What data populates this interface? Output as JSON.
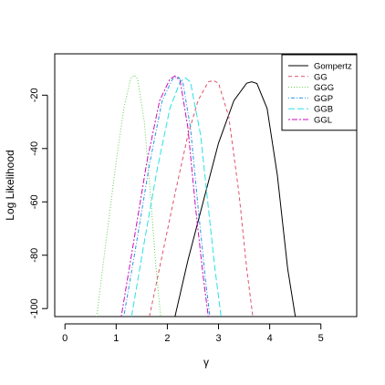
{
  "chart_data": {
    "type": "line",
    "xlabel": "γ",
    "ylabel": "Log Likelihood",
    "xlim": [
      -0.2,
      5.7
    ],
    "ylim": [
      -103,
      -4.5
    ],
    "xticks": [
      0,
      1,
      2,
      3,
      4,
      5
    ],
    "yticks": [
      -100,
      -80,
      -60,
      -40,
      -20
    ],
    "grid": false,
    "legend_position": "top-right",
    "series": [
      {
        "name": "Gompertz",
        "color": "#000000",
        "dash": "solid",
        "x": [
          2.15,
          2.4,
          2.7,
          3.0,
          3.3,
          3.55,
          3.65,
          3.75,
          3.95,
          4.15,
          4.35,
          4.5
        ],
        "y": [
          -103,
          -82,
          -60,
          -38,
          -22,
          -15.5,
          -15,
          -15.6,
          -25,
          -50,
          -85,
          -103
        ]
      },
      {
        "name": "GG",
        "color": "#DF536B",
        "dash": "dashed",
        "x": [
          1.65,
          1.9,
          2.15,
          2.4,
          2.6,
          2.8,
          2.9,
          3.0,
          3.2,
          3.4,
          3.55,
          3.67
        ],
        "y": [
          -103,
          -80,
          -57,
          -35,
          -22,
          -15,
          -14.5,
          -15.5,
          -28,
          -57,
          -85,
          -103
        ]
      },
      {
        "name": "GGG",
        "color": "#61D04F",
        "dash": "dotted",
        "x": [
          0.62,
          0.8,
          1.0,
          1.15,
          1.28,
          1.35,
          1.42,
          1.55,
          1.68,
          1.78,
          1.87
        ],
        "y": [
          -103,
          -75,
          -45,
          -25,
          -14,
          -12.5,
          -14,
          -30,
          -60,
          -85,
          -103
        ]
      },
      {
        "name": "GGP",
        "color": "#2297E6",
        "dash": "dashdot",
        "x": [
          1.15,
          1.4,
          1.65,
          1.9,
          2.1,
          2.2,
          2.3,
          2.45,
          2.6,
          2.75,
          2.83
        ],
        "y": [
          -103,
          -75,
          -46,
          -22,
          -14,
          -13,
          -15,
          -32,
          -62,
          -90,
          -103
        ]
      },
      {
        "name": "GGB",
        "color": "#28E2E5",
        "dash": "longdash",
        "x": [
          1.3,
          1.55,
          1.8,
          2.05,
          2.25,
          2.35,
          2.45,
          2.65,
          2.8,
          2.93,
          3.05
        ],
        "y": [
          -103,
          -75,
          -48,
          -25,
          -15,
          -13.5,
          -15,
          -35,
          -62,
          -85,
          -103
        ]
      },
      {
        "name": "GGL",
        "color": "#CD0BBC",
        "dash": "twodash",
        "x": [
          1.1,
          1.35,
          1.6,
          1.85,
          2.05,
          2.15,
          2.25,
          2.4,
          2.55,
          2.7,
          2.8
        ],
        "y": [
          -103,
          -74,
          -45,
          -22,
          -14,
          -12.8,
          -14.5,
          -32,
          -62,
          -88,
          -103
        ]
      }
    ]
  }
}
